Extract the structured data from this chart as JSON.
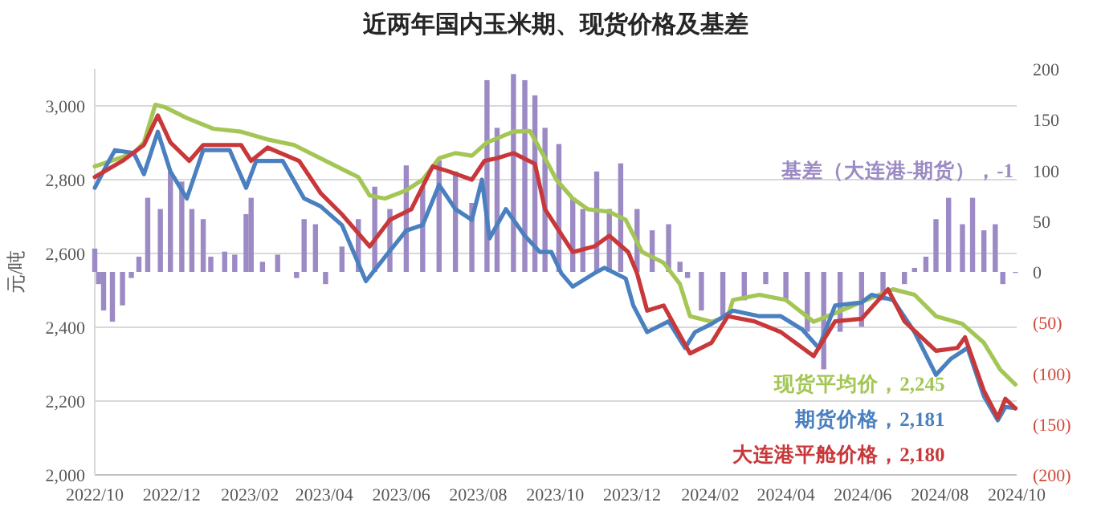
{
  "chart_data": {
    "type": "line",
    "title": "近两年国内玉米期、现货价格及基差",
    "ylabel": "元/吨",
    "grid": "y",
    "line_style": "solid",
    "marker": "none",
    "xlim": [
      "2022-10-01",
      "2024-10-01"
    ],
    "xticks": [
      {
        "value": "2022-10",
        "label": "2022/10"
      },
      {
        "value": "2022-12",
        "label": "2022/12"
      },
      {
        "value": "2023-02",
        "label": "2023/02"
      },
      {
        "value": "2023-04",
        "label": "2023/04"
      },
      {
        "value": "2023-06",
        "label": "2023/06"
      },
      {
        "value": "2023-08",
        "label": "2023/08"
      },
      {
        "value": "2023-10",
        "label": "2023/10"
      },
      {
        "value": "2023-12",
        "label": "2023/12"
      },
      {
        "value": "2024-02",
        "label": "2024/02"
      },
      {
        "value": "2024-04",
        "label": "2024/04"
      },
      {
        "value": "2024-06",
        "label": "2024/06"
      },
      {
        "value": "2024-08",
        "label": "2024/08"
      },
      {
        "value": "2024-10",
        "label": "2024/10"
      }
    ],
    "ylim": [
      2000,
      3100
    ],
    "yticks": [
      {
        "value": 2000,
        "label": "2,000"
      },
      {
        "value": 2200,
        "label": "2,200"
      },
      {
        "value": 2400,
        "label": "2,400"
      },
      {
        "value": 2600,
        "label": "2,600"
      },
      {
        "value": 2800,
        "label": "2,800"
      },
      {
        "value": 3000,
        "label": "3,000"
      }
    ],
    "y2lim": [
      -200,
      200
    ],
    "y2ticks": [
      {
        "value": -200,
        "label": "(200)"
      },
      {
        "value": -150,
        "label": "(150)"
      },
      {
        "value": -100,
        "label": "(100)"
      },
      {
        "value": -50,
        "label": "(50)"
      },
      0,
      50,
      100,
      150,
      200
    ],
    "series": [
      {
        "name": "基差（大连港-期货）",
        "type": "bar",
        "axis": "y2",
        "color": "#9b8ac4",
        "x": [
          "2022-10-01",
          "2022-10-04",
          "2022-10-08",
          "2022-10-15",
          "2022-10-23",
          "2022-10-30",
          "2022-11-05",
          "2022-11-12",
          "2022-11-22",
          "2022-11-30",
          "2022-12-09",
          "2022-12-17",
          "2022-12-26",
          "2023-01-01",
          "2023-01-12",
          "2023-01-20",
          "2023-01-29",
          "2023-02-02",
          "2023-02-11",
          "2023-02-23",
          "2023-03-10",
          "2023-03-16",
          "2023-03-25",
          "2023-04-02",
          "2023-04-15",
          "2023-04-28",
          "2023-05-11",
          "2023-05-23",
          "2023-06-05",
          "2023-06-18",
          "2023-07-01",
          "2023-07-14",
          "2023-07-27",
          "2023-08-08",
          "2023-08-16",
          "2023-08-29",
          "2023-09-07",
          "2023-09-15",
          "2023-09-23",
          "2023-10-04",
          "2023-10-15",
          "2023-10-23",
          "2023-11-03",
          "2023-11-13",
          "2023-11-22",
          "2023-12-05",
          "2023-12-17",
          "2023-12-30",
          "2024-01-08",
          "2024-01-14",
          "2024-01-25",
          "2024-02-11",
          "2024-02-28",
          "2024-03-16",
          "2024-04-01",
          "2024-04-18",
          "2024-05-01",
          "2024-05-14",
          "2024-05-31",
          "2024-06-17",
          "2024-07-04",
          "2024-07-12",
          "2024-07-21",
          "2024-07-29",
          "2024-08-08",
          "2024-08-19",
          "2024-08-27",
          "2024-09-05",
          "2024-09-14",
          "2024-09-20",
          "2024-09-30"
        ],
        "values": [
          23,
          -12,
          -38,
          -49,
          -33,
          -6,
          15,
          73,
          62,
          99,
          89,
          62,
          52,
          15,
          20,
          17,
          57,
          73,
          10,
          17,
          -6,
          52,
          47,
          -12,
          25,
          52,
          84,
          62,
          105,
          84,
          110,
          99,
          68,
          189,
          142,
          195,
          189,
          174,
          142,
          126,
          73,
          62,
          99,
          62,
          107,
          62,
          41,
          47,
          10,
          -6,
          -38,
          -43,
          -28,
          -12,
          -28,
          -59,
          -96,
          -59,
          -54,
          -28,
          -12,
          4,
          15,
          52,
          73,
          47,
          73,
          41,
          47,
          -12,
          -1
        ],
        "value_labels": [
          null,
          null,
          null,
          null,
          null,
          null,
          null,
          null,
          null,
          null,
          null,
          null,
          null,
          null,
          null,
          null,
          null,
          null,
          null,
          null,
          null,
          null,
          null,
          null,
          null,
          null,
          null,
          null,
          null,
          null,
          null,
          null,
          null,
          null,
          null,
          null,
          null,
          null,
          null,
          null,
          null,
          null,
          null,
          null,
          null,
          null,
          null,
          null,
          null,
          null,
          null,
          null,
          null,
          null,
          null,
          null,
          null,
          null,
          null,
          null,
          null,
          null,
          null,
          null,
          null,
          null,
          null,
          null,
          null,
          null,
          "，-1"
        ]
      },
      {
        "name": "现货平均价",
        "color": "#a3c655",
        "x": [
          "2022-10-01",
          "2022-11-01",
          "2022-11-09",
          "2022-11-18",
          "2022-11-26",
          "2022-12-13",
          "2023-01-03",
          "2023-01-25",
          "2023-02-15",
          "2023-03-08",
          "2023-03-29",
          "2023-04-19",
          "2023-04-28",
          "2023-05-07",
          "2023-05-19",
          "2023-06-05",
          "2023-06-18",
          "2023-07-01",
          "2023-07-14",
          "2023-07-27",
          "2023-08-08",
          "2023-08-29",
          "2023-09-11",
          "2023-09-23",
          "2023-10-02",
          "2023-10-15",
          "2023-10-27",
          "2023-11-13",
          "2023-11-26",
          "2023-12-09",
          "2023-12-26",
          "2024-01-08",
          "2024-01-16",
          "2024-02-02",
          "2024-02-15",
          "2024-02-19",
          "2024-03-11",
          "2024-04-01",
          "2024-04-23",
          "2024-05-14",
          "2024-06-04",
          "2024-06-25",
          "2024-07-12",
          "2024-07-29",
          "2024-08-19",
          "2024-09-05",
          "2024-09-18",
          "2024-09-30"
        ],
        "values": [
          2836,
          2872,
          2901,
          3003,
          2996,
          2967,
          2938,
          2930,
          2909,
          2894,
          2858,
          2822,
          2807,
          2757,
          2749,
          2771,
          2800,
          2858,
          2872,
          2865,
          2901,
          2930,
          2932,
          2858,
          2800,
          2749,
          2720,
          2713,
          2691,
          2604,
          2575,
          2517,
          2430,
          2415,
          2430,
          2474,
          2488,
          2474,
          2415,
          2444,
          2474,
          2503,
          2488,
          2430,
          2409,
          2358,
          2285,
          2245
        ],
        "value_labels": [
          null,
          null,
          null,
          null,
          null,
          null,
          null,
          null,
          null,
          null,
          null,
          null,
          null,
          null,
          null,
          null,
          null,
          null,
          null,
          null,
          null,
          null,
          null,
          null,
          null,
          null,
          null,
          null,
          null,
          null,
          null,
          null,
          null,
          null,
          null,
          null,
          null,
          null,
          null,
          null,
          null,
          null,
          null,
          null,
          null,
          null,
          null,
          "，2,245"
        ]
      },
      {
        "name": "期货价格",
        "color": "#4a80c0",
        "x": [
          "2022-10-01",
          "2022-10-11",
          "2022-10-17",
          "2022-11-01",
          "2022-11-09",
          "2022-11-20",
          "2022-11-30",
          "2022-12-13",
          "2022-12-26",
          "2023-01-16",
          "2023-01-29",
          "2023-02-06",
          "2023-02-27",
          "2023-03-16",
          "2023-03-29",
          "2023-04-15",
          "2023-05-04",
          "2023-05-19",
          "2023-06-05",
          "2023-06-18",
          "2023-07-01",
          "2023-07-14",
          "2023-07-27",
          "2023-08-04",
          "2023-08-10",
          "2023-08-23",
          "2023-09-07",
          "2023-09-19",
          "2023-09-28",
          "2023-10-06",
          "2023-10-15",
          "2023-11-01",
          "2023-11-09",
          "2023-11-26",
          "2023-12-02",
          "2023-12-13",
          "2023-12-30",
          "2024-01-12",
          "2024-01-20",
          "2024-02-02",
          "2024-02-19",
          "2024-03-11",
          "2024-03-28",
          "2024-04-14",
          "2024-04-27",
          "2024-05-10",
          "2024-05-31",
          "2024-06-08",
          "2024-06-25",
          "2024-07-12",
          "2024-07-29",
          "2024-08-10",
          "2024-08-23",
          "2024-09-05",
          "2024-09-16",
          "2024-09-22",
          "2024-09-30"
        ],
        "values": [
          2778,
          2843,
          2880,
          2872,
          2815,
          2930,
          2822,
          2749,
          2880,
          2880,
          2778,
          2851,
          2851,
          2749,
          2728,
          2677,
          2525,
          2590,
          2662,
          2677,
          2786,
          2720,
          2691,
          2800,
          2641,
          2720,
          2648,
          2604,
          2604,
          2546,
          2510,
          2546,
          2561,
          2532,
          2459,
          2387,
          2416,
          2344,
          2387,
          2409,
          2445,
          2430,
          2430,
          2394,
          2344,
          2459,
          2467,
          2488,
          2474,
          2387,
          2271,
          2315,
          2344,
          2213,
          2148,
          2184,
          2181
        ],
        "value_labels": [
          null,
          null,
          null,
          null,
          null,
          null,
          null,
          null,
          null,
          null,
          null,
          null,
          null,
          null,
          null,
          null,
          null,
          null,
          null,
          null,
          null,
          null,
          null,
          null,
          null,
          null,
          null,
          null,
          null,
          null,
          null,
          null,
          null,
          null,
          null,
          null,
          null,
          null,
          null,
          null,
          null,
          null,
          null,
          null,
          null,
          null,
          null,
          null,
          null,
          null,
          null,
          null,
          null,
          null,
          null,
          null,
          "，2,181"
        ]
      },
      {
        "name": "大连港平舱价格",
        "color": "#c8383a",
        "x": [
          "2022-10-01",
          "2022-10-23",
          "2022-11-09",
          "2022-11-20",
          "2022-11-30",
          "2022-12-15",
          "2022-12-26",
          "2023-01-25",
          "2023-02-02",
          "2023-02-15",
          "2023-03-12",
          "2023-03-29",
          "2023-04-15",
          "2023-05-07",
          "2023-05-23",
          "2023-06-09",
          "2023-06-26",
          "2023-07-09",
          "2023-07-27",
          "2023-08-06",
          "2023-08-16",
          "2023-08-29",
          "2023-09-15",
          "2023-09-23",
          "2023-10-04",
          "2023-10-15",
          "2023-11-01",
          "2023-11-13",
          "2023-11-28",
          "2023-12-05",
          "2023-12-13",
          "2023-12-26",
          "2024-01-16",
          "2024-02-02",
          "2024-02-15",
          "2024-03-07",
          "2024-03-28",
          "2024-04-23",
          "2024-05-10",
          "2024-05-31",
          "2024-06-21",
          "2024-07-04",
          "2024-07-29",
          "2024-08-15",
          "2024-08-21",
          "2024-09-05",
          "2024-09-16",
          "2024-09-22",
          "2024-09-30"
        ],
        "values": [
          2807,
          2851,
          2894,
          2974,
          2901,
          2851,
          2894,
          2894,
          2851,
          2887,
          2851,
          2764,
          2706,
          2619,
          2691,
          2720,
          2836,
          2822,
          2800,
          2851,
          2858,
          2872,
          2843,
          2720,
          2662,
          2604,
          2619,
          2648,
          2604,
          2546,
          2445,
          2459,
          2329,
          2358,
          2430,
          2416,
          2387,
          2322,
          2416,
          2423,
          2503,
          2416,
          2336,
          2344,
          2373,
          2228,
          2155,
          2206,
          2180
        ],
        "value_labels": [
          null,
          null,
          null,
          null,
          null,
          null,
          null,
          null,
          null,
          null,
          null,
          null,
          null,
          null,
          null,
          null,
          null,
          null,
          null,
          null,
          null,
          null,
          null,
          null,
          null,
          null,
          null,
          null,
          null,
          null,
          null,
          null,
          null,
          null,
          null,
          null,
          null,
          null,
          null,
          null,
          null,
          null,
          null,
          null,
          null,
          null,
          null,
          null,
          "，2,180"
        ]
      }
    ]
  }
}
